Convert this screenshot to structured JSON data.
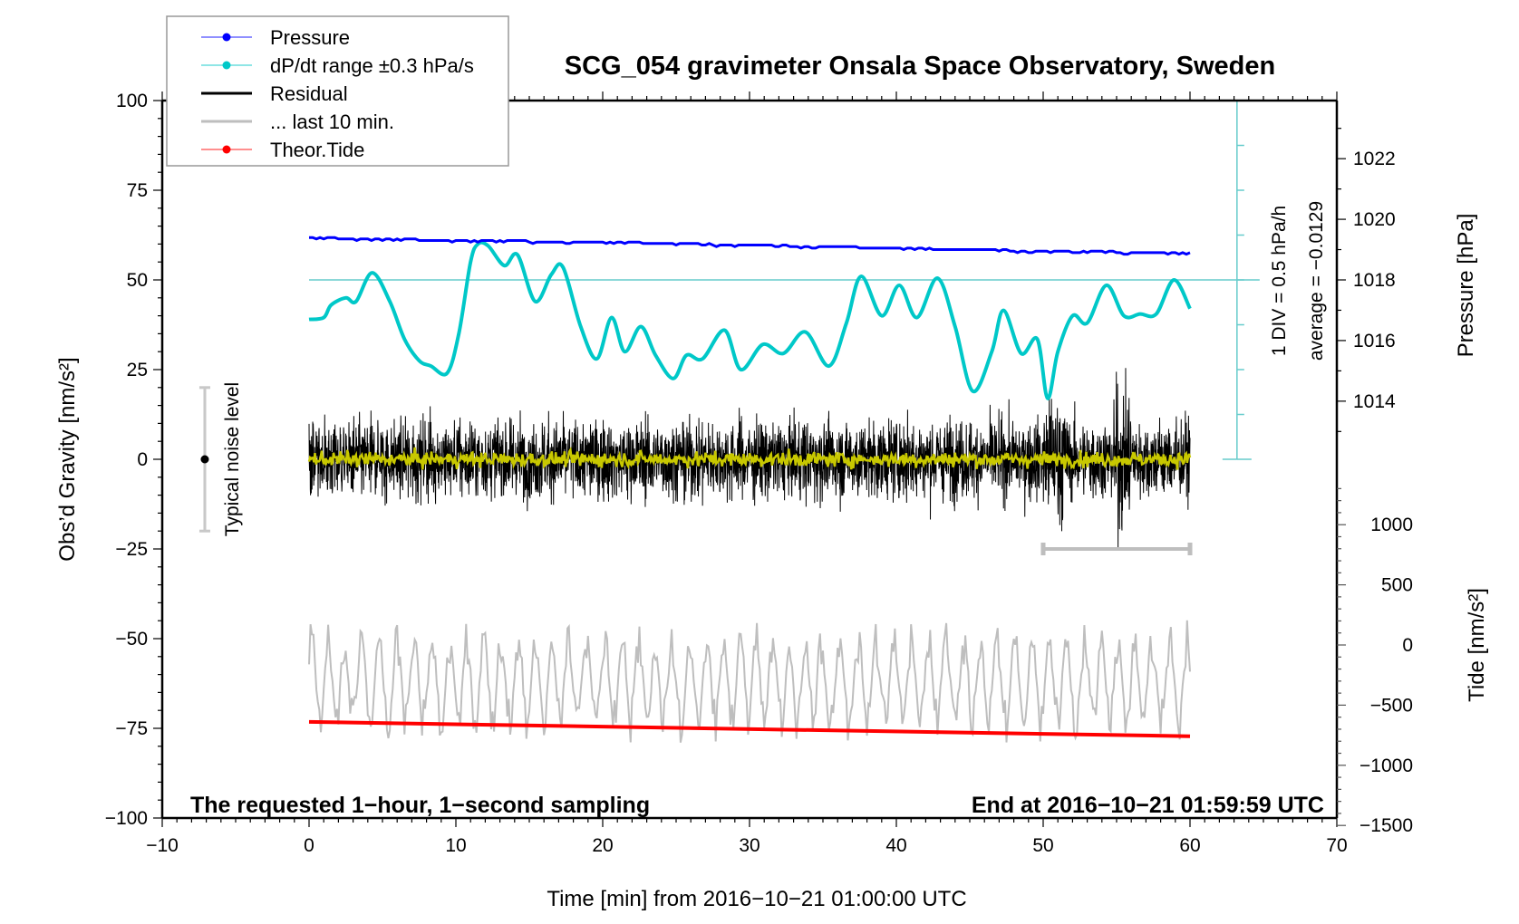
{
  "chart_data": {
    "type": "line",
    "title": "SCG_054 gravimeter Onsala Space Observatory, Sweden",
    "xlabel": "Time [min] from 2016−10−21 01:00:00 UTC",
    "ylabel_left": "Obs’d Gravity [nm/s²]",
    "ylabel_right_pressure": "Pressure [hPa]",
    "ylabel_right_tide": "Tide [nm/s²]",
    "xlim": [
      -10,
      70
    ],
    "ylim": [
      -100,
      100
    ],
    "grid": false,
    "x_ticks": [
      -10,
      0,
      10,
      20,
      30,
      40,
      50,
      60,
      70
    ],
    "x_tick_labels": [
      "−10",
      "0",
      "10",
      "20",
      "30",
      "40",
      "50",
      "60",
      "70"
    ],
    "y_ticks": [
      100,
      75,
      50,
      25,
      0,
      -25,
      -50,
      -75,
      -100
    ],
    "y_tick_labels": [
      "100",
      "75",
      "50",
      "25",
      "0",
      "−25",
      "−50",
      "−75",
      "−100"
    ],
    "pressure_ticks": [
      1022,
      1020,
      1018,
      1016,
      1014
    ],
    "pressure_tick_labels": [
      "1022",
      "1020",
      "1018",
      "1016",
      "1014"
    ],
    "tide_ticks": [
      1000,
      500,
      0,
      -500,
      -1000,
      -1500
    ],
    "tide_tick_labels": [
      "1000",
      "500",
      "0",
      "−500",
      "−1000",
      "−1500"
    ],
    "legend": {
      "placement": "top-left",
      "entries": [
        {
          "label": "Pressure",
          "color": "#0000ff",
          "marker": "dot"
        },
        {
          "label": "dP/dt range ±0.3 hPa/s",
          "color": "#00c8c8",
          "marker": "dot"
        },
        {
          "label": "Residual",
          "color": "#000000",
          "marker": "line"
        },
        {
          "label": "... last 10 min.",
          "color": "#bebebe",
          "marker": "line"
        },
        {
          "label": "Theor.Tide",
          "color": "#ff0000",
          "marker": "dot"
        }
      ]
    },
    "annotations": {
      "bottom_left": "The requested 1−hour, 1−second sampling",
      "bottom_right": "End at 2016−10−21 01:59:59 UTC",
      "noise_label": "Typical noise level",
      "div_label": "1 DIV = 0.5 hPa/h",
      "average_label": "average = −0.0129"
    },
    "noise_level": {
      "x": -7.1,
      "center": 0,
      "half_range": 20
    },
    "last10_marker": {
      "x_start": 50,
      "x_end": 60,
      "y": -25
    },
    "dpdt_reference": {
      "x_start": 0,
      "x_end": 63.2,
      "y": 50
    },
    "dpdt_scale_bar": {
      "x": 63.2,
      "y_start": 0,
      "y_end": 100,
      "divisions": 8
    },
    "series": [
      {
        "name": "Pressure",
        "axis": "pressure",
        "color": "#0000ff",
        "x": [
          0,
          10,
          20,
          30,
          40,
          50,
          60
        ],
        "values": [
          1019.4,
          1019.3,
          1019.25,
          1019.15,
          1019.05,
          1018.95,
          1018.9
        ]
      },
      {
        "name": "dP/dt",
        "axis": "gravity",
        "color": "#00c8c8",
        "x": [
          0,
          1,
          1.5,
          2.5,
          3.2,
          4.3,
          5.5,
          6.5,
          7.5,
          8.3,
          9.4,
          10.2,
          11,
          11.5,
          12.2,
          13.3,
          14.2,
          15.4,
          16.5,
          17.3,
          18.5,
          19.6,
          20.6,
          21.5,
          22.6,
          23.6,
          24.8,
          25.7,
          26.8,
          28.3,
          29.4,
          30.9,
          32.3,
          33.8,
          35.4,
          36.6,
          37.6,
          39,
          40.2,
          41.4,
          42.8,
          44,
          45.2,
          46.5,
          47.3,
          48.5,
          49.6,
          50.3,
          51,
          52,
          53,
          54.3,
          55.5,
          56.6,
          57.7,
          58.9,
          60
        ],
        "values": [
          39,
          39.5,
          43,
          45,
          44,
          52,
          44,
          33.5,
          27.5,
          26,
          24,
          35,
          55,
          60,
          59.5,
          54,
          57,
          44,
          51.5,
          53.5,
          37,
          28,
          39.5,
          30,
          37,
          29,
          22.5,
          29,
          28,
          36,
          25,
          32,
          29.5,
          35.5,
          26,
          38,
          51,
          40,
          48.5,
          39.5,
          50.5,
          37,
          19,
          30,
          41.5,
          29.5,
          33.5,
          17,
          30,
          40,
          38,
          48.5,
          40,
          40.5,
          40.5,
          50,
          42
        ]
      },
      {
        "name": "Residual",
        "axis": "gravity",
        "color": "#000000",
        "x_range": [
          0,
          60
        ],
        "typical_amplitude": 15,
        "max_abs": 33
      },
      {
        "name": "Residual (smoothed)",
        "axis": "gravity",
        "color": "#c8c800",
        "x_range": [
          0,
          60
        ],
        "typical_amplitude": 2
      },
      {
        "name": "... last 10 min.",
        "axis": "gravity",
        "color": "#bebebe",
        "x_range": [
          0,
          60
        ],
        "center": -62,
        "typical_amplitude": 14
      },
      {
        "name": "Theor.Tide",
        "axis": "gravity",
        "color": "#ff0000",
        "x": [
          0,
          60
        ],
        "values": [
          -73.2,
          -77.2
        ]
      }
    ]
  }
}
